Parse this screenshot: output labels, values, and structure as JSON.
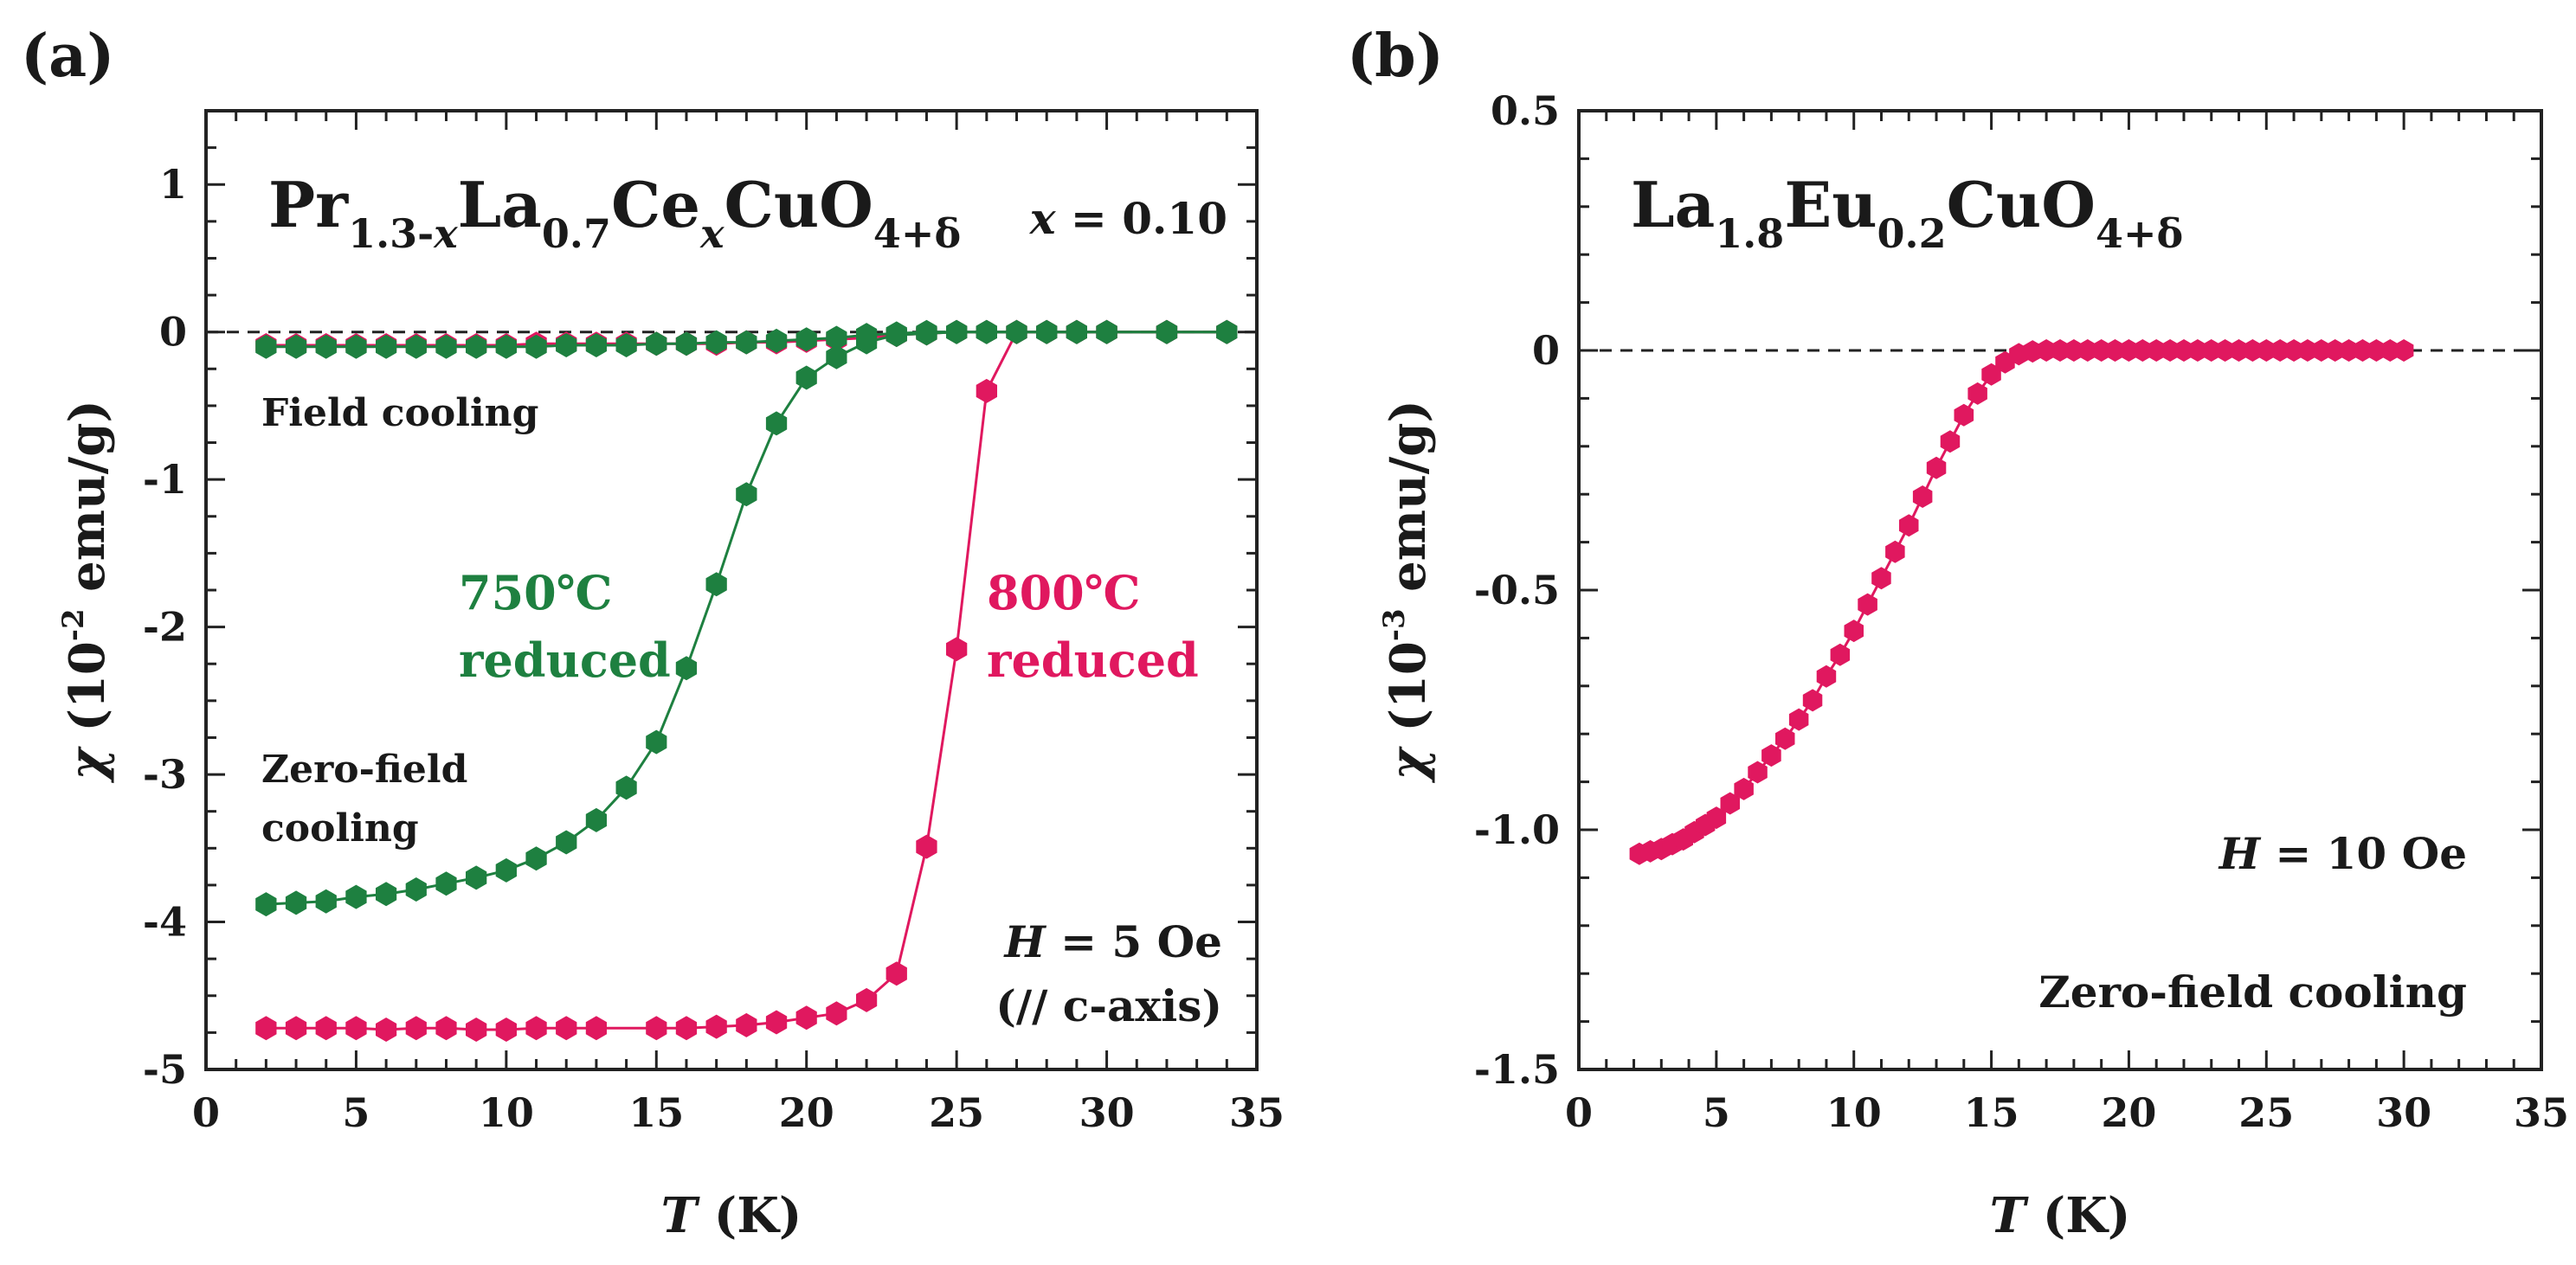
{
  "panels": [
    {
      "label": "(a)",
      "formula": {
        "p1": "Pr",
        "s1": "1.3-",
        "s1i": "x",
        "p2": "La",
        "s2": "0.7",
        "p3": "Ce",
        "s3": "x",
        "p4": "CuO",
        "s4": "4+δ"
      },
      "x_annot": {
        "var": "x",
        "rest": " = 0.10"
      },
      "field_cooling_label": "Field cooling",
      "zfc_label_1": "Zero-field",
      "zfc_label_2": "cooling",
      "h_annot": {
        "var": "H",
        "rest": " = 5 Oe"
      },
      "h_annot_2": "(// c-axis)",
      "ylabel": {
        "chi": "χ",
        "pre": " (10",
        "exp": "-2",
        "post": " emu/g)"
      },
      "xlabel": {
        "var": "T",
        "rest": " (K)"
      }
    },
    {
      "label": "(b)",
      "formula": {
        "p1": "La",
        "s1": "1.8",
        "p2": "Eu",
        "s2": "0.2",
        "p3": "CuO",
        "s3": "4+δ"
      },
      "h_annot": {
        "var": "H",
        "rest": " = 10 Oe"
      },
      "zfc_label": "Zero-field cooling",
      "ylabel": {
        "chi": "χ",
        "pre": " (10",
        "exp": "-3",
        "post": " emu/g)"
      },
      "xlabel": {
        "var": "T",
        "rest": " (K)"
      }
    }
  ],
  "chart_data": [
    {
      "type": "scatter",
      "title": "Pr1.3-xLa0.7CexCuO4+δ, x = 0.10",
      "xlabel": "T (K)",
      "ylabel": "χ (10^-2 emu/g)",
      "xlim": [
        0,
        35
      ],
      "ylim": [
        -5,
        1.5
      ],
      "xticks": [
        0,
        5,
        10,
        15,
        20,
        25,
        30,
        35
      ],
      "yticks": [
        1,
        0,
        -1,
        -2,
        -3,
        -4,
        -5
      ],
      "reference_line": 0,
      "series": [
        {
          "name": "750℃ reduced",
          "line1": "750℃",
          "line2": "reduced",
          "color": "#1e8040",
          "curves": [
            {
              "mode": "Zero-field cooling",
              "x": [
                2,
                3,
                4,
                5,
                6,
                7,
                8,
                9,
                10,
                11,
                12,
                13,
                14,
                15,
                16,
                17,
                18,
                19,
                20,
                21,
                22,
                23,
                24,
                25,
                26,
                27,
                28,
                29,
                30,
                32,
                34
              ],
              "y": [
                -3.88,
                -3.87,
                -3.86,
                -3.83,
                -3.81,
                -3.78,
                -3.74,
                -3.7,
                -3.65,
                -3.57,
                -3.46,
                -3.31,
                -3.09,
                -2.78,
                -2.28,
                -1.71,
                -1.1,
                -0.62,
                -0.31,
                -0.17,
                -0.07,
                -0.02,
                -0.01,
                0,
                0,
                0,
                0,
                0,
                0,
                0,
                0
              ]
            },
            {
              "mode": "Field cooling",
              "x": [
                2,
                3,
                4,
                5,
                6,
                7,
                8,
                9,
                10,
                11,
                12,
                13,
                14,
                15,
                16,
                17,
                18,
                19,
                20,
                21,
                22,
                23,
                24,
                25,
                26,
                27,
                28,
                29,
                30,
                32,
                34
              ],
              "y": [
                -0.1,
                -0.1,
                -0.1,
                -0.1,
                -0.1,
                -0.1,
                -0.1,
                -0.1,
                -0.1,
                -0.1,
                -0.09,
                -0.09,
                -0.09,
                -0.08,
                -0.08,
                -0.07,
                -0.07,
                -0.06,
                -0.05,
                -0.04,
                -0.02,
                -0.01,
                0,
                0,
                0,
                0,
                0,
                0,
                0,
                0,
                0
              ]
            }
          ]
        },
        {
          "name": "800℃ reduced",
          "line1": "800℃",
          "line2": "reduced",
          "color": "#e0185f",
          "curves": [
            {
              "mode": "Zero-field cooling",
              "x": [
                2,
                3,
                4,
                5,
                6,
                7,
                8,
                9,
                10,
                11,
                12,
                13,
                15,
                16,
                17,
                18,
                19,
                20,
                21,
                22,
                23,
                24,
                25,
                26,
                27,
                28,
                29,
                30,
                32,
                34
              ],
              "y": [
                -4.72,
                -4.72,
                -4.72,
                -4.72,
                -4.73,
                -4.72,
                -4.72,
                -4.73,
                -4.73,
                -4.72,
                -4.72,
                -4.72,
                -4.72,
                -4.72,
                -4.71,
                -4.7,
                -4.68,
                -4.65,
                -4.62,
                -4.53,
                -4.35,
                -3.49,
                -2.15,
                -0.4,
                0,
                0,
                0,
                0,
                0,
                0
              ],
              "draw": "markers-line"
            },
            {
              "mode": "Field cooling",
              "x": [
                2,
                3,
                4,
                5,
                6,
                7,
                8,
                9,
                10,
                11,
                12,
                13,
                14,
                15,
                16,
                17,
                18,
                19,
                20,
                21,
                22,
                23,
                24,
                25,
                26,
                27,
                28,
                29,
                30,
                32,
                34
              ],
              "y": [
                -0.09,
                -0.09,
                -0.09,
                -0.09,
                -0.09,
                -0.09,
                -0.09,
                -0.09,
                -0.09,
                -0.08,
                -0.08,
                -0.08,
                -0.08,
                -0.08,
                -0.08,
                -0.08,
                -0.07,
                -0.07,
                -0.06,
                -0.05,
                -0.04,
                -0.02,
                -0.01,
                0,
                0,
                0,
                0,
                0,
                0,
                0,
                0
              ]
            }
          ]
        }
      ]
    },
    {
      "type": "scatter",
      "title": "La1.8Eu0.2CuO4+δ",
      "xlabel": "T (K)",
      "ylabel": "χ (10^-3 emu/g)",
      "xlim": [
        0,
        35
      ],
      "ylim": [
        -1.5,
        0.5
      ],
      "xticks": [
        0,
        5,
        10,
        15,
        20,
        25,
        30,
        35
      ],
      "yticks": [
        0.5,
        0,
        -0.5,
        -1.0,
        -1.5
      ],
      "ytick_labels": [
        "0.5",
        "0",
        "-0.5",
        "-1.0",
        "-1.5"
      ],
      "reference_line": 0,
      "series": [
        {
          "name": "Zero-field cooling",
          "color": "#e0185f",
          "x": [
            2.2,
            2.6,
            3.0,
            3.4,
            3.8,
            4.2,
            4.6,
            5.0,
            5.5,
            6.0,
            6.5,
            7.0,
            7.5,
            8.0,
            8.5,
            9.0,
            9.5,
            10.0,
            10.5,
            11.0,
            11.5,
            12.0,
            12.5,
            13.0,
            13.5,
            14.0,
            14.5,
            15.0,
            15.5,
            16.0,
            16.5,
            17.0,
            17.5,
            18.0,
            18.5,
            19.0,
            19.5,
            20.0,
            20.5,
            21.0,
            21.5,
            22.0,
            22.5,
            23.0,
            23.5,
            24.0,
            24.5,
            25.0,
            25.5,
            26.0,
            26.5,
            27.0,
            27.5,
            28.0,
            28.5,
            29.0,
            29.5,
            30.0
          ],
          "y": [
            -1.05,
            -1.045,
            -1.04,
            -1.03,
            -1.02,
            -1.005,
            -0.99,
            -0.975,
            -0.945,
            -0.915,
            -0.88,
            -0.845,
            -0.81,
            -0.77,
            -0.73,
            -0.68,
            -0.635,
            -0.585,
            -0.53,
            -0.475,
            -0.42,
            -0.365,
            -0.305,
            -0.245,
            -0.19,
            -0.135,
            -0.09,
            -0.05,
            -0.025,
            -0.008,
            -0.002,
            0,
            0,
            0,
            0,
            0,
            0,
            0,
            0,
            0,
            0,
            0,
            0,
            0,
            0,
            0,
            0,
            0,
            0,
            0,
            0,
            0,
            0,
            0,
            0,
            0,
            0,
            0
          ]
        }
      ]
    }
  ]
}
